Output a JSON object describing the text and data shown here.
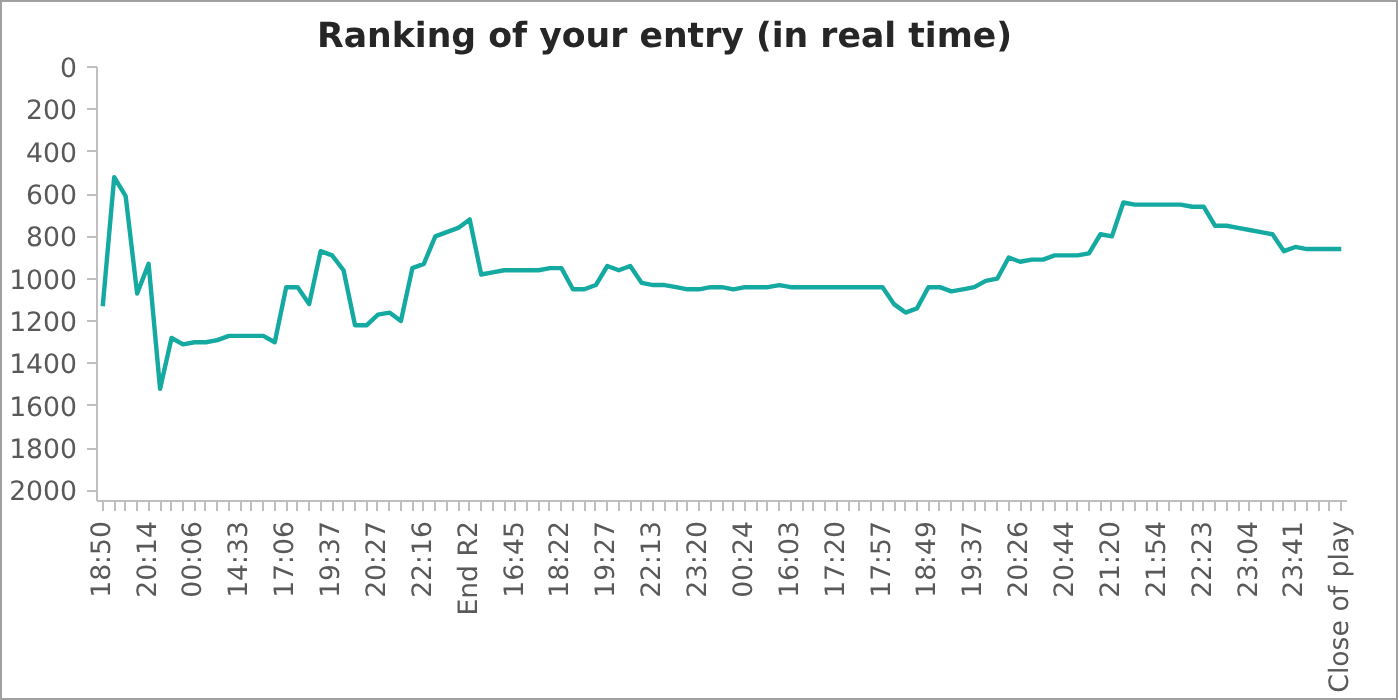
{
  "chart_data": {
    "type": "line",
    "title": "Ranking of your entry (in real time)",
    "categories": [
      "18:50",
      null,
      null,
      null,
      "20:14",
      null,
      null,
      null,
      "00:06",
      null,
      null,
      null,
      "14:33",
      null,
      null,
      null,
      "17:06",
      null,
      null,
      null,
      "19:37",
      null,
      null,
      null,
      "20:27",
      null,
      null,
      null,
      "22:16",
      null,
      null,
      null,
      "End R2",
      null,
      null,
      null,
      "16:45",
      null,
      null,
      null,
      "18:22",
      null,
      null,
      null,
      "19:27",
      null,
      null,
      null,
      "22:13",
      null,
      null,
      null,
      "23:20",
      null,
      null,
      null,
      "00:24",
      null,
      null,
      null,
      "16:03",
      null,
      null,
      null,
      "17:20",
      null,
      null,
      null,
      "17:57",
      null,
      null,
      null,
      "18:49",
      null,
      null,
      null,
      "19:37",
      null,
      null,
      null,
      "20:26",
      null,
      null,
      null,
      "20:44",
      null,
      null,
      null,
      "21:20",
      null,
      null,
      null,
      "21:54",
      null,
      null,
      null,
      "22:23",
      null,
      null,
      null,
      "23:04",
      null,
      null,
      null,
      "23:41",
      null,
      null,
      null,
      "Close of play"
    ],
    "series": [
      {
        "color": "#14a9a1",
        "values": [
          1130,
          520,
          610,
          1070,
          930,
          1520,
          1280,
          1310,
          1300,
          1300,
          1290,
          1270,
          1270,
          1270,
          1270,
          1300,
          1040,
          1040,
          1120,
          870,
          890,
          960,
          1220,
          1220,
          1170,
          1160,
          1200,
          950,
          930,
          800,
          780,
          760,
          720,
          980,
          970,
          960,
          960,
          960,
          960,
          950,
          950,
          1050,
          1050,
          1030,
          940,
          960,
          940,
          1020,
          1030,
          1030,
          1040,
          1050,
          1050,
          1040,
          1040,
          1050,
          1040,
          1040,
          1040,
          1030,
          1040,
          1040,
          1040,
          1040,
          1040,
          1040,
          1040,
          1040,
          1040,
          1120,
          1160,
          1140,
          1040,
          1040,
          1060,
          1050,
          1040,
          1010,
          1000,
          900,
          920,
          910,
          910,
          890,
          890,
          890,
          880,
          790,
          800,
          640,
          650,
          650,
          650,
          650,
          650,
          660,
          660,
          750,
          750,
          760,
          770,
          780,
          790,
          870,
          850,
          860,
          860,
          860,
          860
        ]
      }
    ],
    "ylim": [
      2050,
      0
    ],
    "yticks": [
      0,
      200,
      400,
      600,
      800,
      1000,
      1200,
      1400,
      1600,
      1800,
      2000
    ],
    "grid": false,
    "marker": "none",
    "line_style": "solid"
  }
}
